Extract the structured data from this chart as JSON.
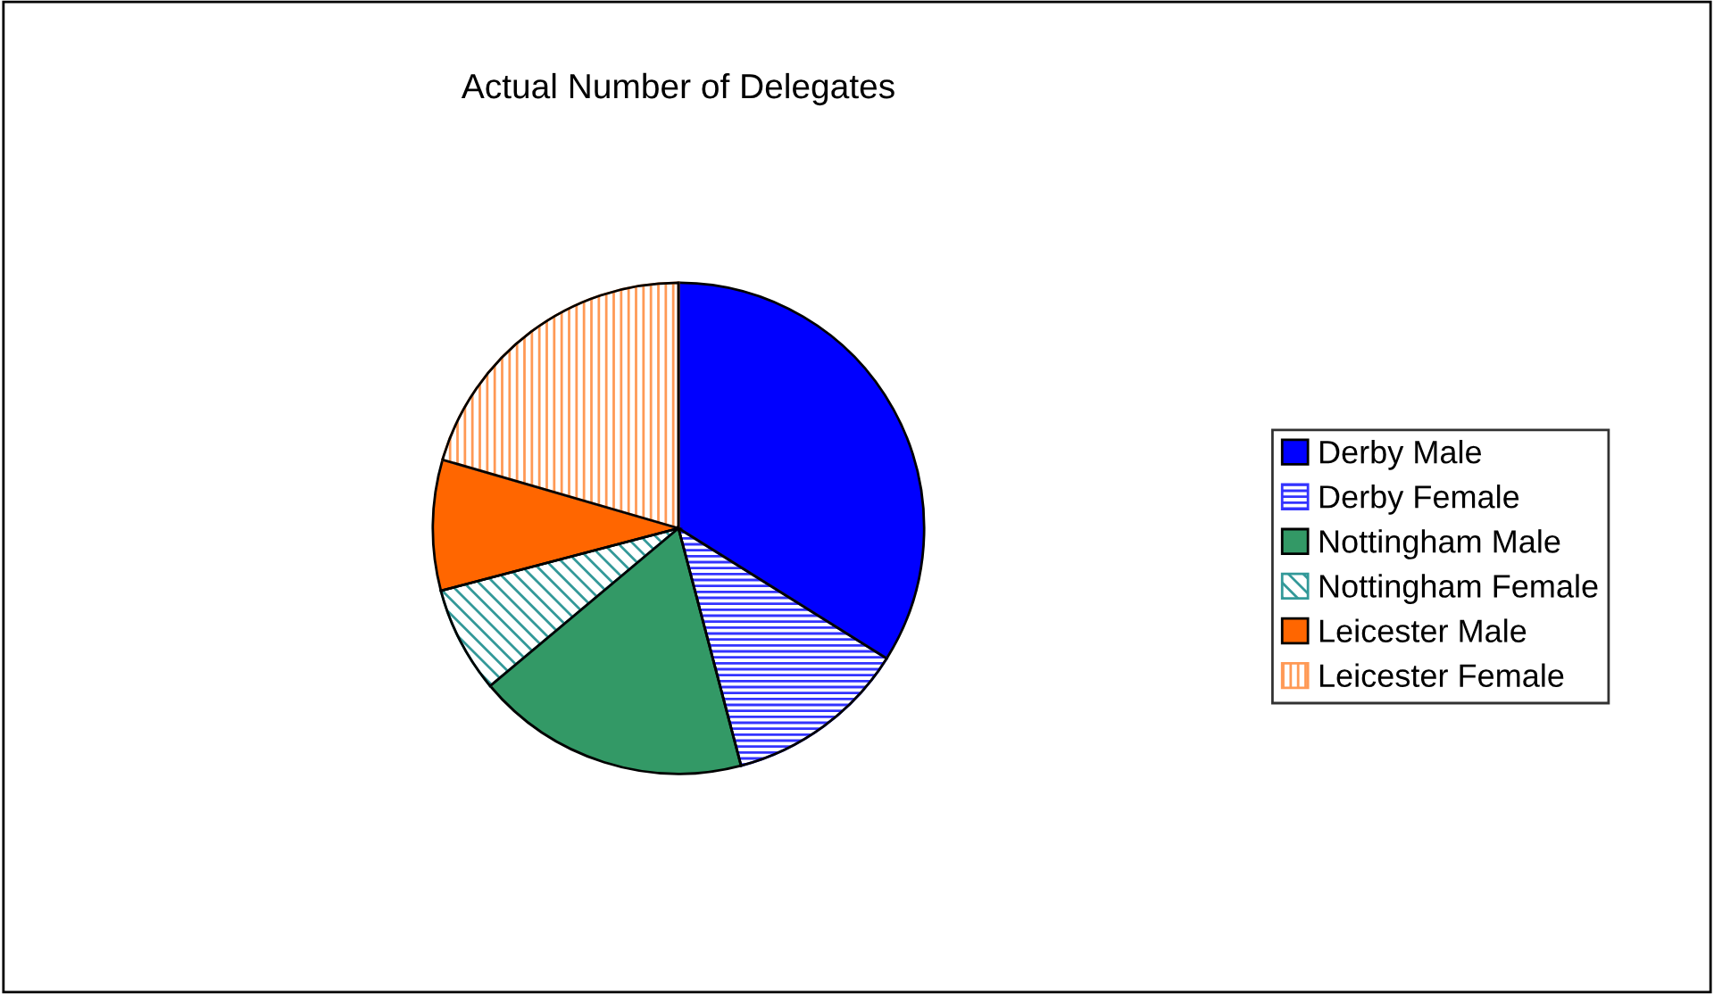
{
  "chart_data": {
    "type": "pie",
    "title": "Actual Number of Delegates",
    "categories": [
      "Derby Male",
      "Derby Female",
      "Nottingham Male",
      "Nottingham Female",
      "Leicester Male",
      "Leicester Female"
    ],
    "values": [
      33.9,
      12,
      18,
      7,
      8.6,
      20.5
    ],
    "colors": [
      "#0000ff",
      "#3333ff",
      "#339966",
      "#339999",
      "#ff6600",
      "#ff9955"
    ],
    "legend": "right"
  }
}
